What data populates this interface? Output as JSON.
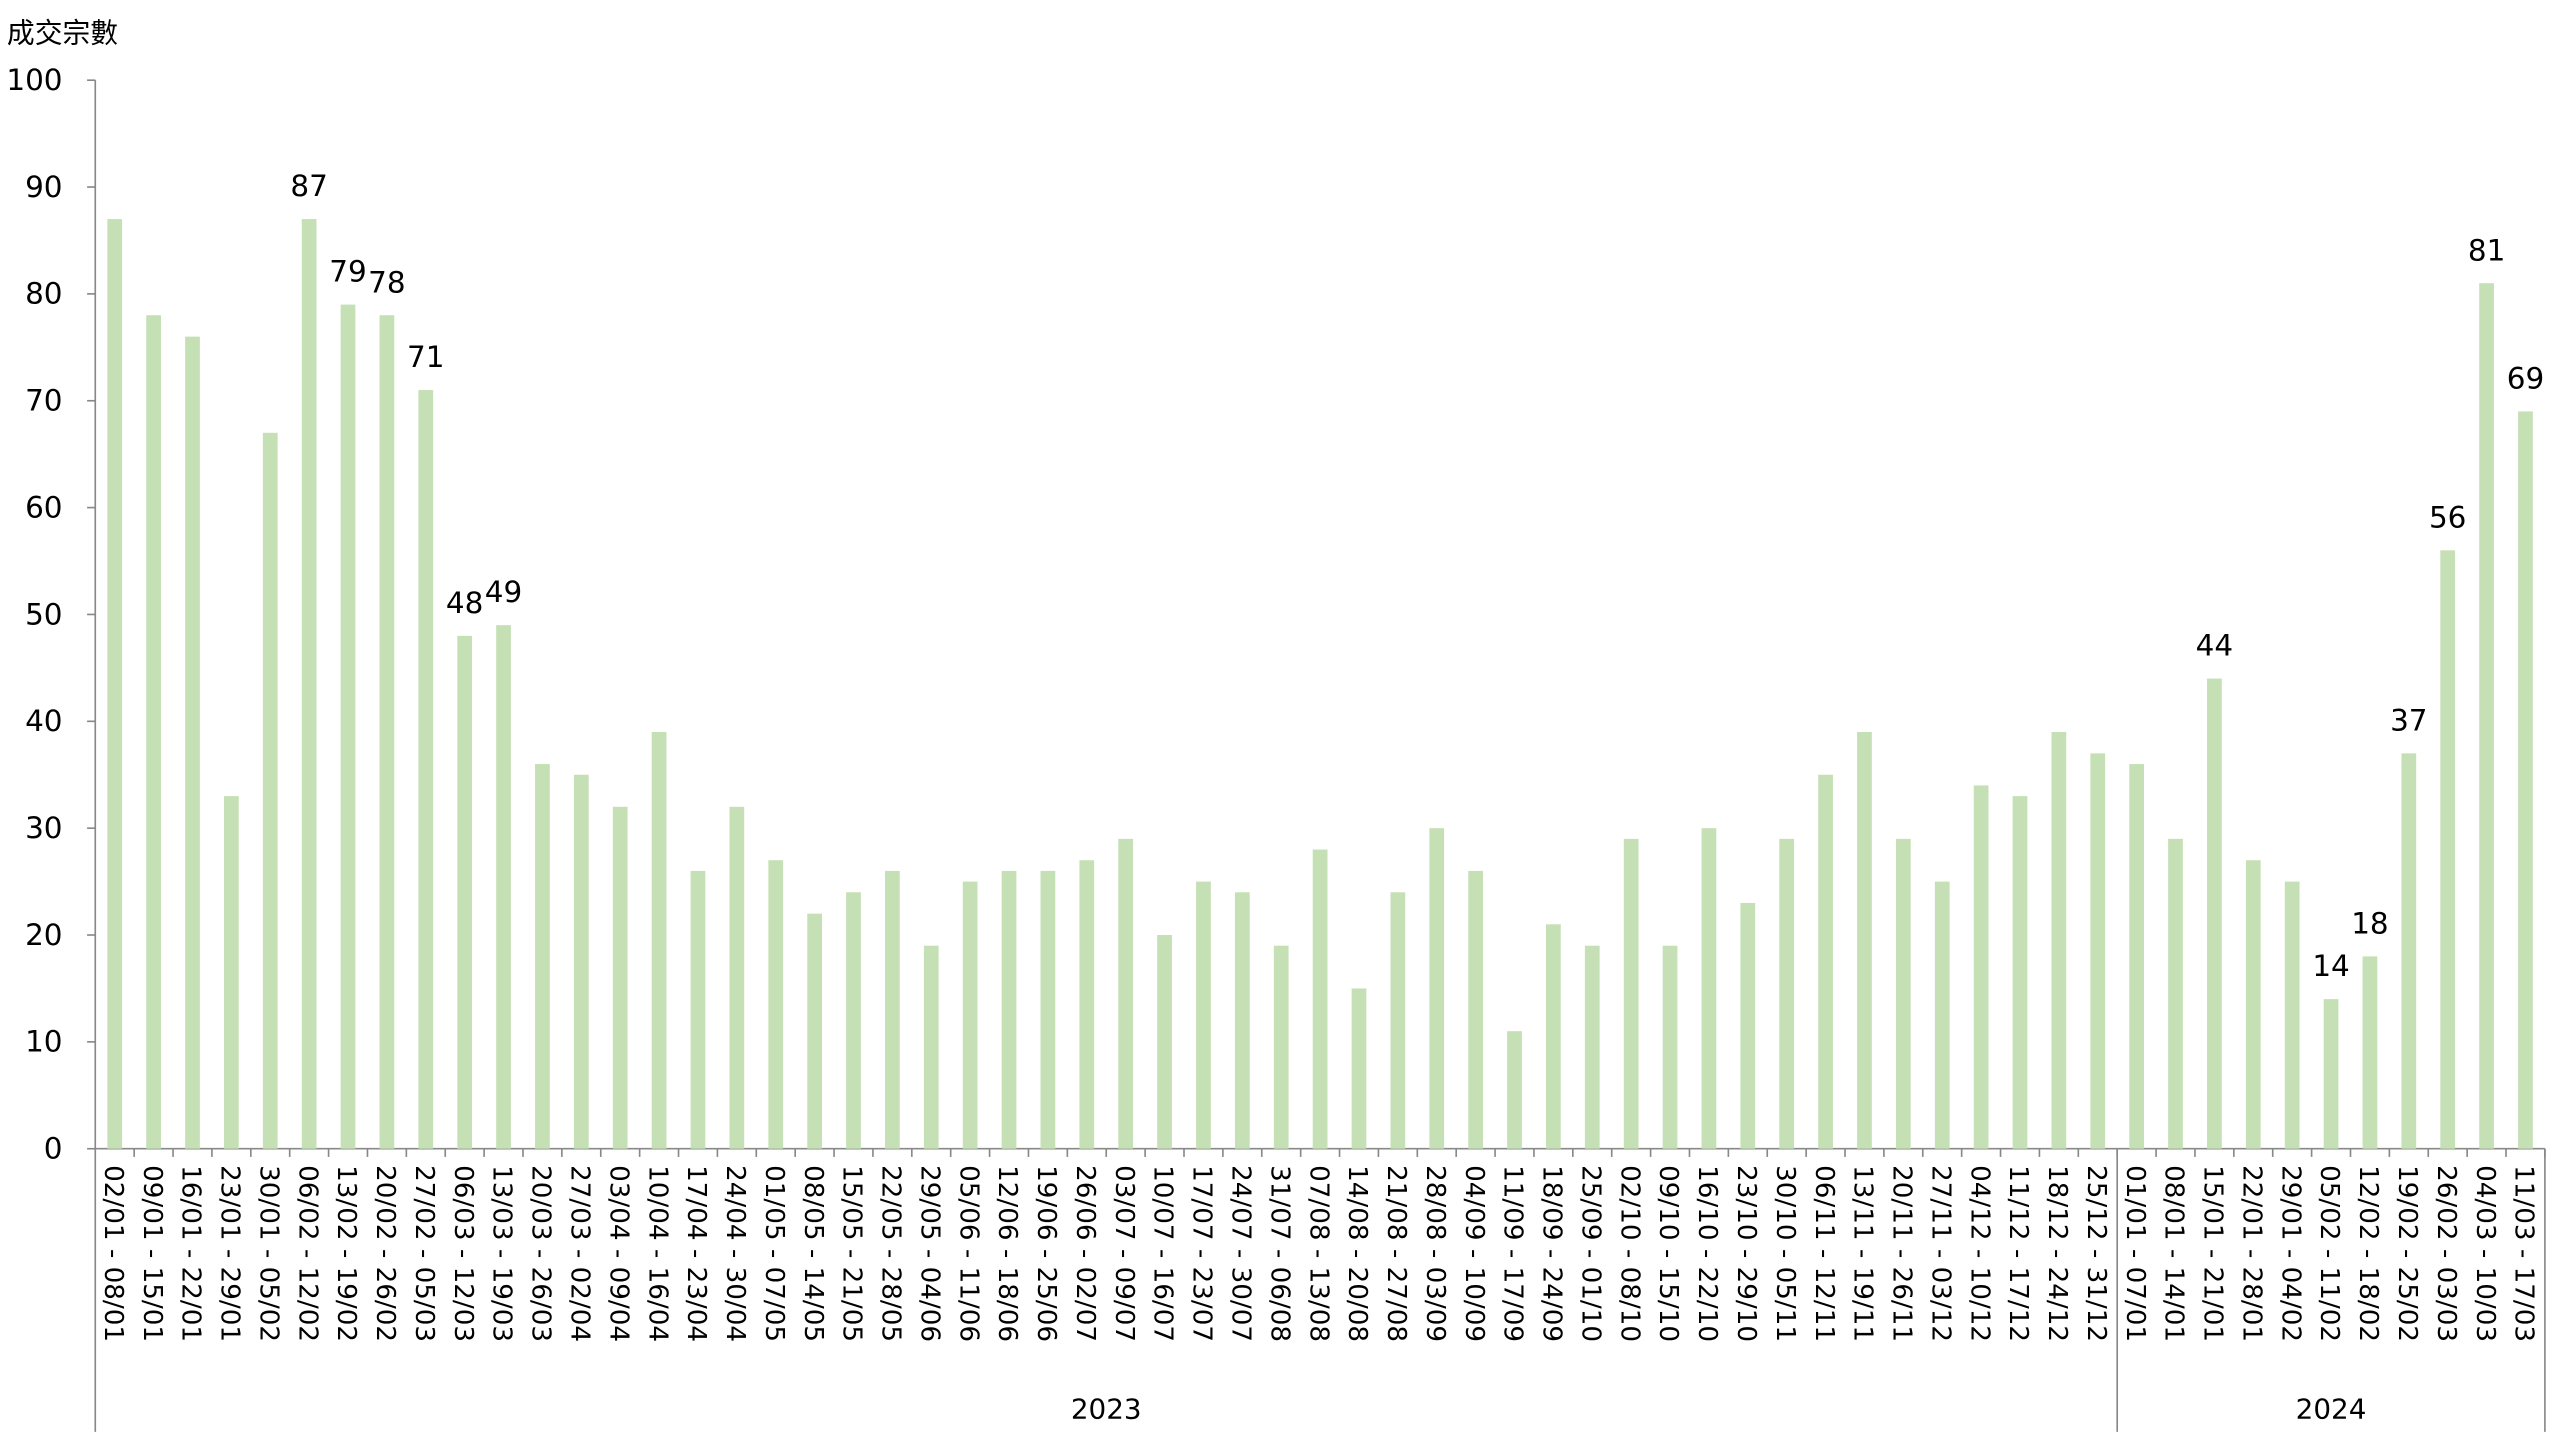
{
  "chart_data": {
    "type": "bar",
    "y_label": "成交宗數",
    "categories": [
      "02/01 - 08/01",
      "09/01 - 15/01",
      "16/01 - 22/01",
      "23/01 - 29/01",
      "30/01 - 05/02",
      "06/02 - 12/02",
      "13/02 - 19/02",
      "20/02 - 26/02",
      "27/02 - 05/03",
      "06/03 - 12/03",
      "13/03 - 19/03",
      "20/03 - 26/03",
      "27/03 - 02/04",
      "03/04 - 09/04",
      "10/04 - 16/04",
      "17/04 - 23/04",
      "24/04 - 30/04",
      "01/05 - 07/05",
      "08/05 - 14/05",
      "15/05 - 21/05",
      "22/05 - 28/05",
      "29/05 - 04/06",
      "05/06 - 11/06",
      "12/06 - 18/06",
      "19/06 - 25/06",
      "26/06 - 02/07",
      "03/07 - 09/07",
      "10/07 - 16/07",
      "17/07 - 23/07",
      "24/07 - 30/07",
      "31/07 - 06/08",
      "07/08 - 13/08",
      "14/08 - 20/08",
      "21/08 - 27/08",
      "28/08 - 03/09",
      "04/09 - 10/09",
      "11/09 - 17/09",
      "18/09 - 24/09",
      "25/09 - 01/10",
      "02/10 - 08/10",
      "09/10 - 15/10",
      "16/10 - 22/10",
      "23/10 - 29/10",
      "30/10 - 05/11",
      "06/11 - 12/11",
      "13/11 - 19/11",
      "20/11 - 26/11",
      "27/11 - 03/12",
      "04/12 - 10/12",
      "11/12 - 17/12",
      "18/12 - 24/12",
      "25/12 - 31/12",
      "01/01 - 07/01",
      "08/01 - 14/01",
      "15/01 - 21/01",
      "22/01 - 28/01",
      "29/01 - 04/02",
      "05/02 - 11/02",
      "12/02 - 18/02",
      "19/02 - 25/02",
      "26/02 - 03/03",
      "04/03 - 10/03",
      "11/03 - 17/03"
    ],
    "values": [
      87,
      78,
      76,
      33,
      67,
      87,
      79,
      78,
      71,
      48,
      49,
      36,
      35,
      32,
      39,
      26,
      32,
      27,
      22,
      24,
      26,
      19,
      25,
      26,
      26,
      27,
      29,
      20,
      25,
      24,
      19,
      28,
      15,
      24,
      30,
      26,
      11,
      21,
      19,
      29,
      19,
      30,
      23,
      29,
      35,
      39,
      29,
      25,
      34,
      33,
      39,
      37,
      36,
      29,
      44,
      27,
      25,
      14,
      18,
      37,
      56,
      81,
      69
    ],
    "data_labels": [
      null,
      null,
      null,
      null,
      null,
      87,
      79,
      78,
      71,
      48,
      49,
      null,
      null,
      null,
      null,
      null,
      null,
      null,
      null,
      null,
      null,
      null,
      null,
      null,
      null,
      null,
      null,
      null,
      null,
      null,
      null,
      null,
      null,
      null,
      null,
      null,
      null,
      null,
      null,
      null,
      null,
      null,
      null,
      null,
      null,
      null,
      null,
      null,
      null,
      null,
      null,
      null,
      null,
      null,
      44,
      null,
      null,
      14,
      18,
      37,
      56,
      81,
      69
    ],
    "groups": [
      {
        "label": "2023",
        "count": 52
      },
      {
        "label": "2024",
        "count": 11
      }
    ],
    "color": "#c5e0b4",
    "ylim": [
      0,
      100
    ],
    "yticks": [
      0,
      10,
      20,
      30,
      40,
      50,
      60,
      70,
      80,
      90,
      100
    ],
    "grid": false
  }
}
